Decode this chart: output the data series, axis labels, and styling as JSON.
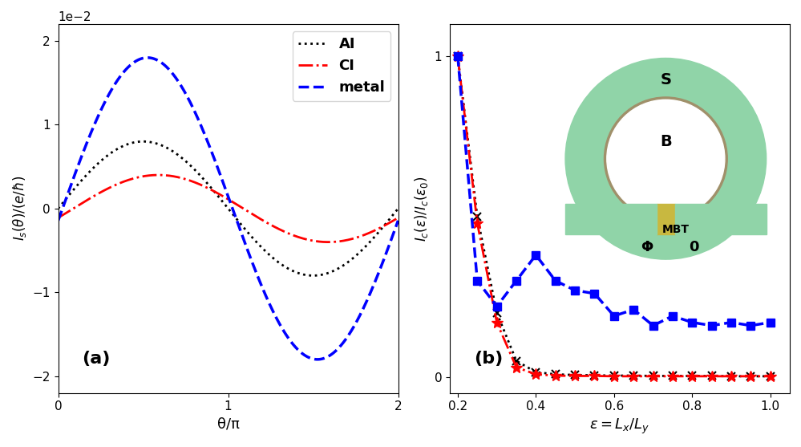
{
  "panel_a": {
    "xlabel": "θ/π",
    "ylim": [
      -0.022,
      0.022
    ],
    "xlim": [
      0,
      2
    ],
    "xticks": [
      0,
      1,
      2
    ],
    "yticks": [
      -0.02,
      -0.01,
      0,
      0.01,
      0.02
    ],
    "legend_labels": [
      "AI",
      "CI",
      "metal"
    ],
    "label_a": "(a)",
    "AI_amp": 0.008,
    "AI_phase": 0.0,
    "CI_amp": 0.004,
    "CI_phase": -0.28,
    "metal_amp": 0.018,
    "metal_phase": -0.08
  },
  "panel_b": {
    "xlabel": "ε = L_x/L_y",
    "ylim": [
      -0.05,
      1.1
    ],
    "xlim": [
      0.18,
      1.05
    ],
    "xticks": [
      0.2,
      0.4,
      0.6,
      0.8,
      1.0
    ],
    "yticks": [
      0,
      1
    ],
    "label_b": "(b)",
    "AI_x": [
      0.2,
      0.25,
      0.3,
      0.35,
      0.4,
      0.45,
      0.5,
      0.55,
      0.6,
      0.65,
      0.7,
      0.75,
      0.8,
      0.85,
      0.9,
      0.95,
      1.0
    ],
    "AI_y": [
      1.0,
      0.5,
      0.2,
      0.05,
      0.015,
      0.008,
      0.006,
      0.005,
      0.004,
      0.004,
      0.003,
      0.003,
      0.003,
      0.003,
      0.002,
      0.002,
      0.002
    ],
    "CI_x": [
      0.2,
      0.25,
      0.3,
      0.35,
      0.4,
      0.45,
      0.5,
      0.55,
      0.6,
      0.65,
      0.7,
      0.75,
      0.8,
      0.85,
      0.9,
      0.95,
      1.0
    ],
    "CI_y": [
      1.0,
      0.48,
      0.17,
      0.03,
      0.008,
      0.004,
      0.003,
      0.003,
      0.002,
      0.002,
      0.002,
      0.002,
      0.002,
      0.002,
      0.002,
      0.002,
      0.002
    ],
    "metal_x": [
      0.2,
      0.25,
      0.3,
      0.35,
      0.4,
      0.45,
      0.5,
      0.55,
      0.6,
      0.65,
      0.7,
      0.75,
      0.8,
      0.85,
      0.9,
      0.95,
      1.0
    ],
    "metal_y": [
      1.0,
      0.3,
      0.22,
      0.3,
      0.38,
      0.3,
      0.27,
      0.26,
      0.19,
      0.21,
      0.16,
      0.19,
      0.17,
      0.16,
      0.17,
      0.16,
      0.17
    ]
  },
  "inset": {
    "ring_color": "#90d4a8",
    "inner_border_color": "#a0906a",
    "mbt_color": "#c8b840",
    "S_label": "S",
    "B_label": "B",
    "MBT_label": "MBT",
    "Phi_label": "Φ",
    "zero_label": "0"
  }
}
